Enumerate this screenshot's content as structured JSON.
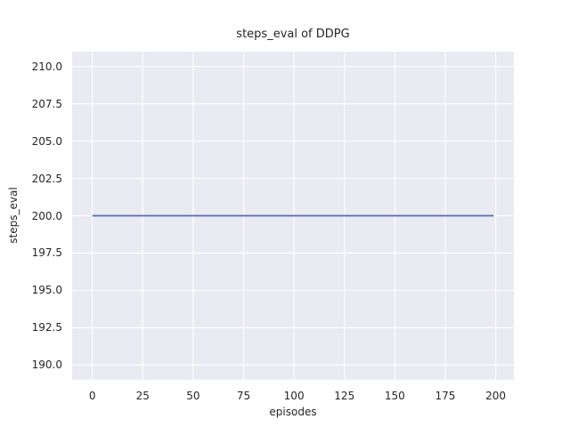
{
  "chart_data": {
    "type": "line",
    "title": "steps_eval of DDPG",
    "xlabel": "episodes",
    "ylabel": "steps_eval",
    "xlim": [
      -10,
      209
    ],
    "ylim": [
      189,
      211
    ],
    "x_ticks": [
      0,
      25,
      50,
      75,
      100,
      125,
      150,
      175,
      200
    ],
    "x_tick_labels": [
      "0",
      "25",
      "50",
      "75",
      "100",
      "125",
      "150",
      "175",
      "200"
    ],
    "y_ticks": [
      190,
      192.5,
      195,
      197.5,
      200,
      202.5,
      205,
      207.5,
      210
    ],
    "y_tick_labels": [
      "190.0",
      "192.5",
      "195.0",
      "197.5",
      "200.0",
      "202.5",
      "205.0",
      "207.5",
      "210.0"
    ],
    "grid": true,
    "legend_position": "none",
    "style": {
      "figure_background": "#FFFFFF",
      "axes_background": "#EAEAF2",
      "grid_color": "#FFFFFF",
      "line_color": "#4C72B0",
      "text_color": "#262626",
      "line_width": 1.8
    },
    "series": [
      {
        "name": "DDPG",
        "description": "constant steps_eval value of 200 across all evaluated episodes 0 to 199",
        "x": [
          0,
          199
        ],
        "y": [
          200,
          200
        ]
      }
    ]
  }
}
